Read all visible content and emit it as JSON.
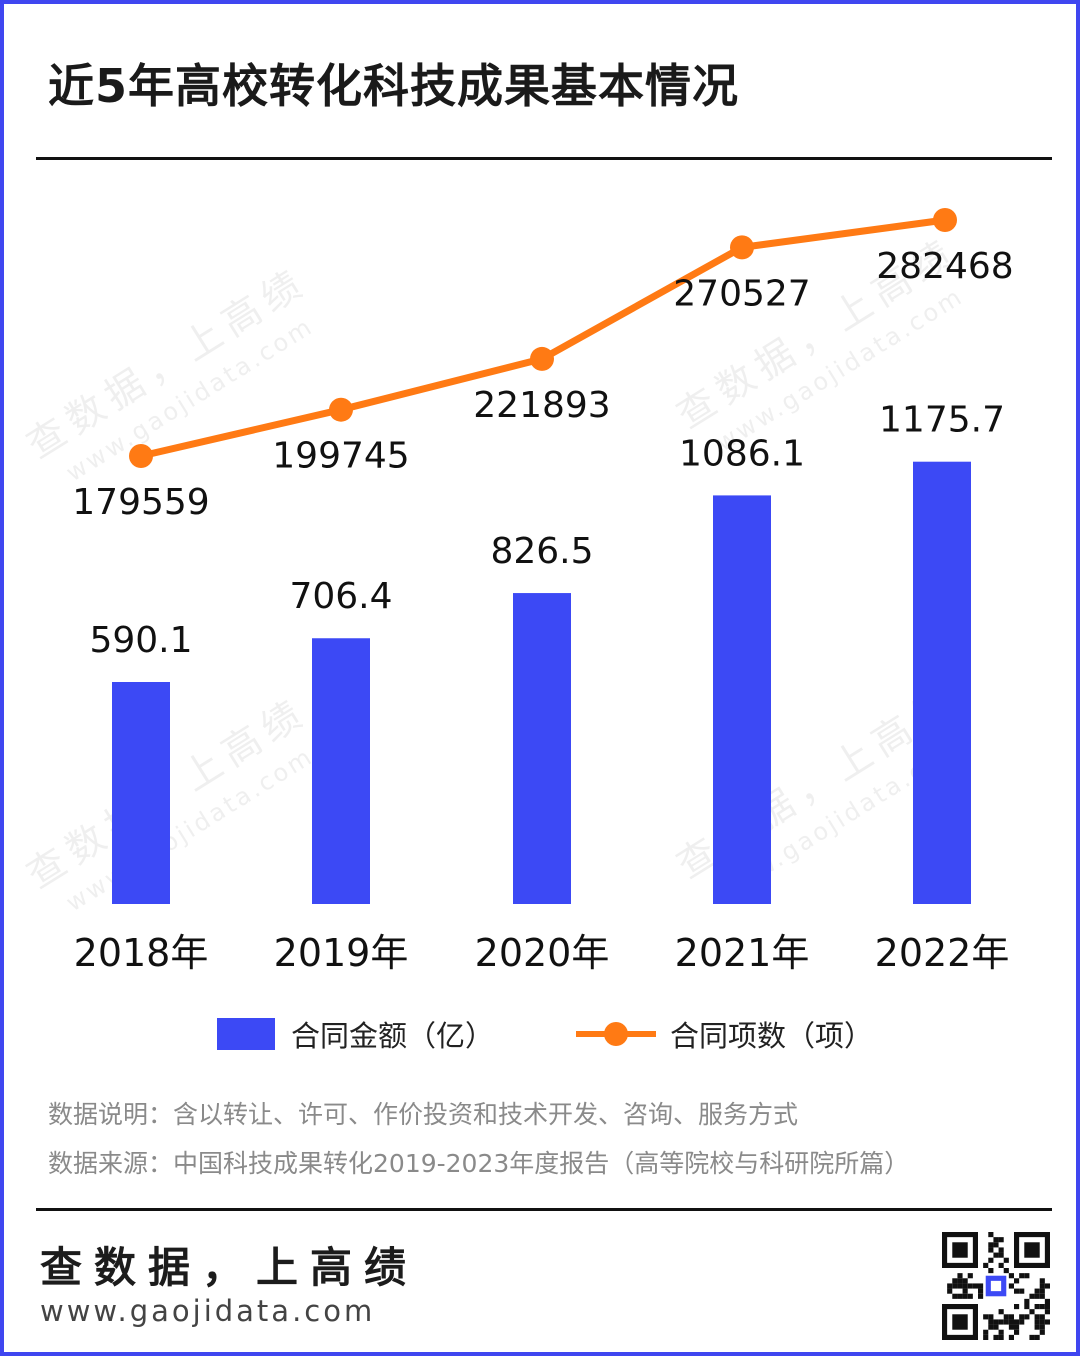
{
  "title": "近5年高校转化科技成果基本情况",
  "colors": {
    "bar": "#3c49f5",
    "line": "#ff7a14",
    "border": "#3f46f0"
  },
  "chart_data": {
    "type": "bar",
    "categories": [
      "2018年",
      "2019年",
      "2020年",
      "2021年",
      "2022年"
    ],
    "series": [
      {
        "name": "合同金额（亿）",
        "type": "bar",
        "values": [
          590.1,
          706.4,
          826.5,
          1086.1,
          1175.7
        ],
        "labels": [
          "590.1",
          "706.4",
          "826.5",
          "1086.1",
          "1175.7"
        ]
      },
      {
        "name": "合同项数（项）",
        "type": "line",
        "values": [
          179559,
          199745,
          221893,
          270527,
          282468
        ],
        "labels": [
          "179559",
          "199745",
          "221893",
          "270527",
          "282468"
        ]
      }
    ],
    "legend_position": "bottom",
    "grid": false
  },
  "notes": {
    "description": "数据说明：含以转让、许可、作价投资和技术开发、咨询、服务方式",
    "source": "数据来源：中国科技成果转化2019-2023年度报告（高等院校与科研院所篇）"
  },
  "watermark": {
    "text": "查数据，上高绩",
    "url": "www.gaojidata.com"
  },
  "footer": {
    "brand": "查数据，上高绩",
    "url": "www.gaojidata.com",
    "qr_icon": "qr-code-icon"
  }
}
